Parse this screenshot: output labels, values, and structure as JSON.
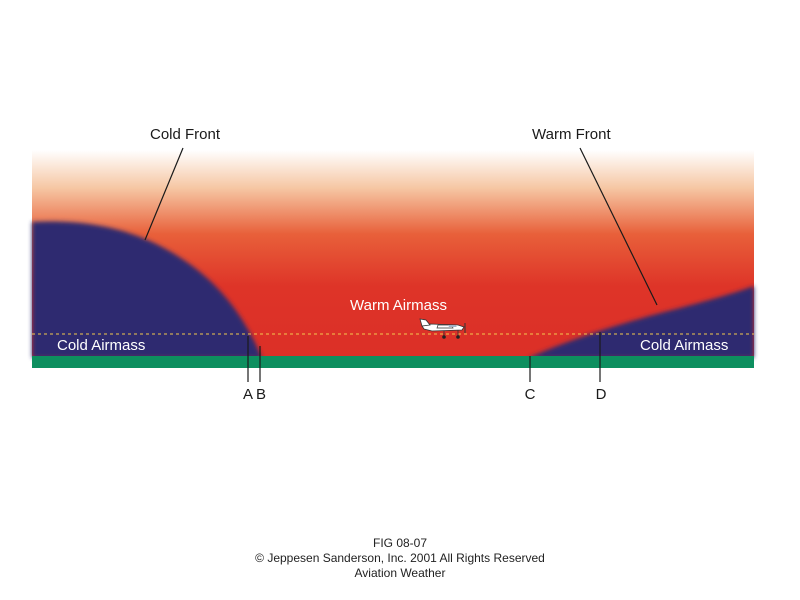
{
  "diagram": {
    "labels": {
      "cold_front": "Cold Front",
      "warm_front": "Warm Front",
      "warm_airmass": "Warm Airmass",
      "cold_airmass_left": "Cold Airmass",
      "cold_airmass_right": "Cold Airmass"
    },
    "points": [
      "A",
      "B",
      "C",
      "D"
    ],
    "icons": {
      "airplane": "airplane-icon"
    },
    "colors": {
      "warm_air": "#de3428",
      "cold_air": "#2e2b70",
      "ground": "#0d8f5f",
      "flight_path": "#f2c94c"
    }
  },
  "caption": {
    "line1": "FIG 08-07",
    "line2": "Jeppesen Sanderson, Inc. 2001 All Rights Reserved",
    "copyright_symbol": "©",
    "line3": "Aviation Weather"
  }
}
